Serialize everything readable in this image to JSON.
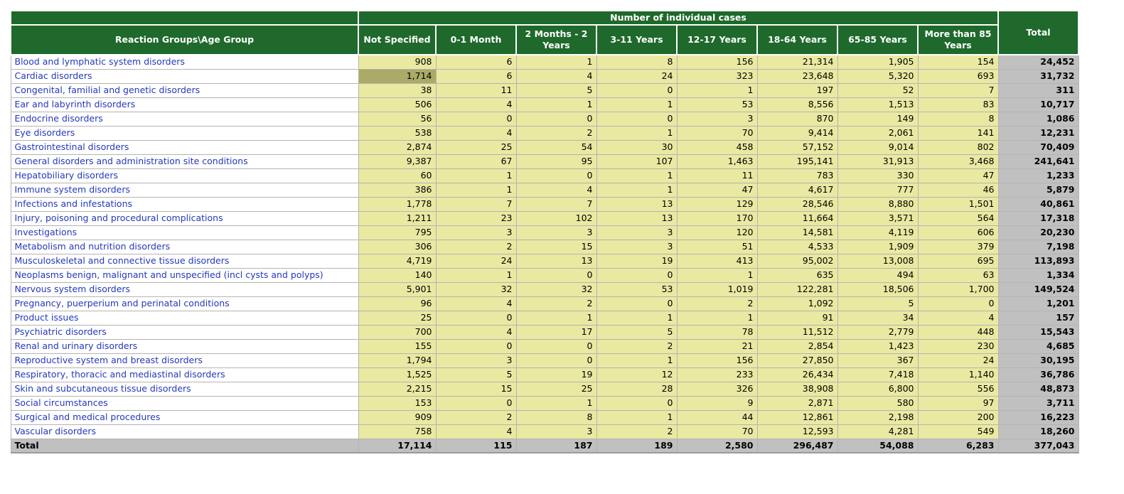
{
  "header": {
    "banner": "Number of individual cases",
    "corner": "Reaction Groups\\Age Group",
    "age_columns": [
      "Not Specified",
      "0-1 Month",
      "2 Months - 2 Years",
      "3-11 Years",
      "12-17 Years",
      "18-64 Years",
      "65-85 Years",
      "More than 85 Years"
    ],
    "total_column": "Total"
  },
  "rows": [
    {
      "label": "Blood and lymphatic system disorders",
      "values": [
        "908",
        "6",
        "1",
        "8",
        "156",
        "21,314",
        "1,905",
        "154",
        "24,452"
      ]
    },
    {
      "label": "Cardiac disorders",
      "values": [
        "1,714",
        "6",
        "4",
        "24",
        "323",
        "23,648",
        "5,320",
        "693",
        "31,732"
      ]
    },
    {
      "label": "Congenital, familial and genetic disorders",
      "values": [
        "38",
        "11",
        "5",
        "0",
        "1",
        "197",
        "52",
        "7",
        "311"
      ]
    },
    {
      "label": "Ear and labyrinth disorders",
      "values": [
        "506",
        "4",
        "1",
        "1",
        "53",
        "8,556",
        "1,513",
        "83",
        "10,717"
      ]
    },
    {
      "label": "Endocrine disorders",
      "values": [
        "56",
        "0",
        "0",
        "0",
        "3",
        "870",
        "149",
        "8",
        "1,086"
      ]
    },
    {
      "label": "Eye disorders",
      "values": [
        "538",
        "4",
        "2",
        "1",
        "70",
        "9,414",
        "2,061",
        "141",
        "12,231"
      ]
    },
    {
      "label": "Gastrointestinal disorders",
      "values": [
        "2,874",
        "25",
        "54",
        "30",
        "458",
        "57,152",
        "9,014",
        "802",
        "70,409"
      ]
    },
    {
      "label": "General disorders and administration site conditions",
      "values": [
        "9,387",
        "67",
        "95",
        "107",
        "1,463",
        "195,141",
        "31,913",
        "3,468",
        "241,641"
      ]
    },
    {
      "label": "Hepatobiliary disorders",
      "values": [
        "60",
        "1",
        "0",
        "1",
        "11",
        "783",
        "330",
        "47",
        "1,233"
      ]
    },
    {
      "label": "Immune system disorders",
      "values": [
        "386",
        "1",
        "4",
        "1",
        "47",
        "4,617",
        "777",
        "46",
        "5,879"
      ]
    },
    {
      "label": "Infections and infestations",
      "values": [
        "1,778",
        "7",
        "7",
        "13",
        "129",
        "28,546",
        "8,880",
        "1,501",
        "40,861"
      ]
    },
    {
      "label": "Injury, poisoning and procedural complications",
      "values": [
        "1,211",
        "23",
        "102",
        "13",
        "170",
        "11,664",
        "3,571",
        "564",
        "17,318"
      ]
    },
    {
      "label": "Investigations",
      "values": [
        "795",
        "3",
        "3",
        "3",
        "120",
        "14,581",
        "4,119",
        "606",
        "20,230"
      ]
    },
    {
      "label": "Metabolism and nutrition disorders",
      "values": [
        "306",
        "2",
        "15",
        "3",
        "51",
        "4,533",
        "1,909",
        "379",
        "7,198"
      ]
    },
    {
      "label": "Musculoskeletal and connective tissue disorders",
      "values": [
        "4,719",
        "24",
        "13",
        "19",
        "413",
        "95,002",
        "13,008",
        "695",
        "113,893"
      ]
    },
    {
      "label": "Neoplasms benign, malignant and unspecified (incl cysts and polyps)",
      "values": [
        "140",
        "1",
        "0",
        "0",
        "1",
        "635",
        "494",
        "63",
        "1,334"
      ]
    },
    {
      "label": "Nervous system disorders",
      "values": [
        "5,901",
        "32",
        "32",
        "53",
        "1,019",
        "122,281",
        "18,506",
        "1,700",
        "149,524"
      ]
    },
    {
      "label": "Pregnancy, puerperium and perinatal conditions",
      "values": [
        "96",
        "4",
        "2",
        "0",
        "2",
        "1,092",
        "5",
        "0",
        "1,201"
      ]
    },
    {
      "label": "Product issues",
      "values": [
        "25",
        "0",
        "1",
        "1",
        "1",
        "91",
        "34",
        "4",
        "157"
      ]
    },
    {
      "label": "Psychiatric disorders",
      "values": [
        "700",
        "4",
        "17",
        "5",
        "78",
        "11,512",
        "2,779",
        "448",
        "15,543"
      ]
    },
    {
      "label": "Renal and urinary disorders",
      "values": [
        "155",
        "0",
        "0",
        "2",
        "21",
        "2,854",
        "1,423",
        "230",
        "4,685"
      ]
    },
    {
      "label": "Reproductive system and breast disorders",
      "values": [
        "1,794",
        "3",
        "0",
        "1",
        "156",
        "27,850",
        "367",
        "24",
        "30,195"
      ]
    },
    {
      "label": "Respiratory, thoracic and mediastinal disorders",
      "values": [
        "1,525",
        "5",
        "19",
        "12",
        "233",
        "26,434",
        "7,418",
        "1,140",
        "36,786"
      ]
    },
    {
      "label": "Skin and subcutaneous tissue disorders",
      "values": [
        "2,215",
        "15",
        "25",
        "28",
        "326",
        "38,908",
        "6,800",
        "556",
        "48,873"
      ]
    },
    {
      "label": "Social circumstances",
      "values": [
        "153",
        "0",
        "1",
        "0",
        "9",
        "2,871",
        "580",
        "97",
        "3,711"
      ]
    },
    {
      "label": "Surgical and medical procedures",
      "values": [
        "909",
        "2",
        "8",
        "1",
        "44",
        "12,861",
        "2,198",
        "200",
        "16,223"
      ]
    },
    {
      "label": "Vascular disorders",
      "values": [
        "758",
        "4",
        "3",
        "2",
        "70",
        "12,593",
        "4,281",
        "549",
        "18,260"
      ]
    }
  ],
  "total_row": {
    "label": "Total",
    "values": [
      "17,114",
      "115",
      "187",
      "189",
      "2,580",
      "296,487",
      "54,088",
      "6,283",
      "377,043"
    ]
  },
  "selection": {
    "row_index": 1,
    "col_index": 0,
    "description": "Cardiac disorders / Not Specified"
  },
  "colors": {
    "header_green": "#1E692B",
    "cell_yellow": "#E9E9A2",
    "selected_olive": "#A9AB66",
    "total_gray": "#C0C0C0",
    "label_blue": "#2438BE"
  }
}
